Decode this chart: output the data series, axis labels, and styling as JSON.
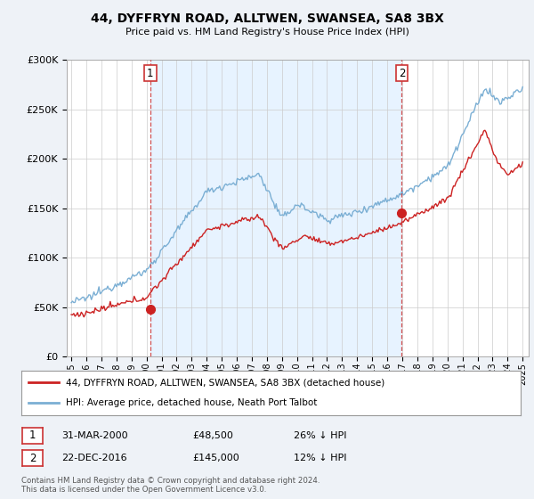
{
  "title": "44, DYFFRYN ROAD, ALLTWEN, SWANSEA, SA8 3BX",
  "subtitle": "Price paid vs. HM Land Registry's House Price Index (HPI)",
  "legend_line1": "44, DYFFRYN ROAD, ALLTWEN, SWANSEA, SA8 3BX (detached house)",
  "legend_line2": "HPI: Average price, detached house, Neath Port Talbot",
  "annotation1_date": "31-MAR-2000",
  "annotation1_price": "£48,500",
  "annotation1_hpi": "26% ↓ HPI",
  "annotation2_date": "22-DEC-2016",
  "annotation2_price": "£145,000",
  "annotation2_hpi": "12% ↓ HPI",
  "footnote": "Contains HM Land Registry data © Crown copyright and database right 2024.\nThis data is licensed under the Open Government Licence v3.0.",
  "hpi_color": "#7bafd4",
  "price_color": "#cc2222",
  "marker_color": "#cc2222",
  "vline_color": "#cc3333",
  "shade_color": "#ddeeff",
  "background_color": "#eef2f7",
  "plot_bg_color": "#ffffff",
  "legend_border_color": "#999999",
  "ylim": [
    0,
    300000
  ],
  "yticks": [
    0,
    50000,
    100000,
    150000,
    200000,
    250000,
    300000
  ],
  "sale1_x": 2000.25,
  "sale1_y": 48500,
  "sale2_x": 2016.97,
  "sale2_y": 145000,
  "xmin": 1994.7,
  "xmax": 2025.4
}
